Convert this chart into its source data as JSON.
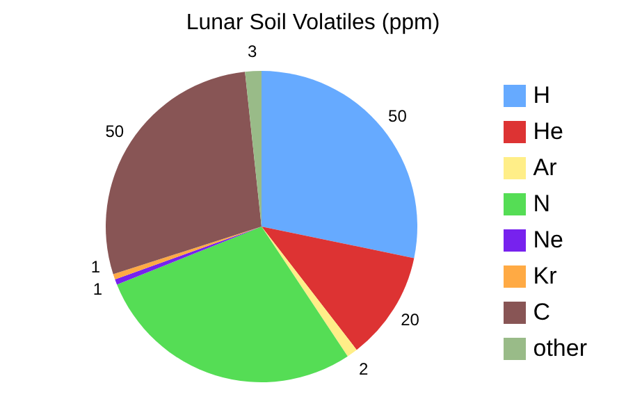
{
  "chart_data": {
    "type": "pie",
    "title": "Lunar Soil Volatiles (ppm)",
    "categories": [
      "H",
      "He",
      "Ar",
      "N",
      "Ne",
      "Kr",
      "C",
      "other"
    ],
    "values": [
      50,
      20,
      2,
      50,
      1,
      1,
      50,
      3
    ],
    "value_labels": [
      "50",
      "20",
      "2",
      null,
      "1",
      "1",
      "50",
      "3"
    ],
    "colors": [
      "#66aaff",
      "#dd3333",
      "#ffee88",
      "#55dd55",
      "#7722ee",
      "#ffaa44",
      "#885555",
      "#99bb88"
    ],
    "legend": "right"
  }
}
